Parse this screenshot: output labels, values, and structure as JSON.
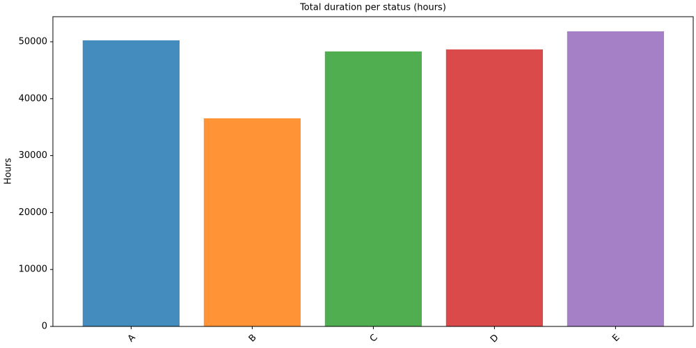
{
  "chart_data": {
    "type": "bar",
    "title": "Total duration per status (hours)",
    "ylabel": "Hours",
    "categories": [
      "A",
      "B",
      "C",
      "D",
      "E"
    ],
    "values": [
      50250,
      36550,
      48300,
      48650,
      51830
    ],
    "colors": [
      "#448bbe",
      "#ff9335",
      "#50ae50",
      "#db4a4a",
      "#a680c6"
    ],
    "ylim": [
      0,
      54400
    ],
    "yticks": [
      0,
      10000,
      20000,
      30000,
      40000,
      50000
    ]
  }
}
